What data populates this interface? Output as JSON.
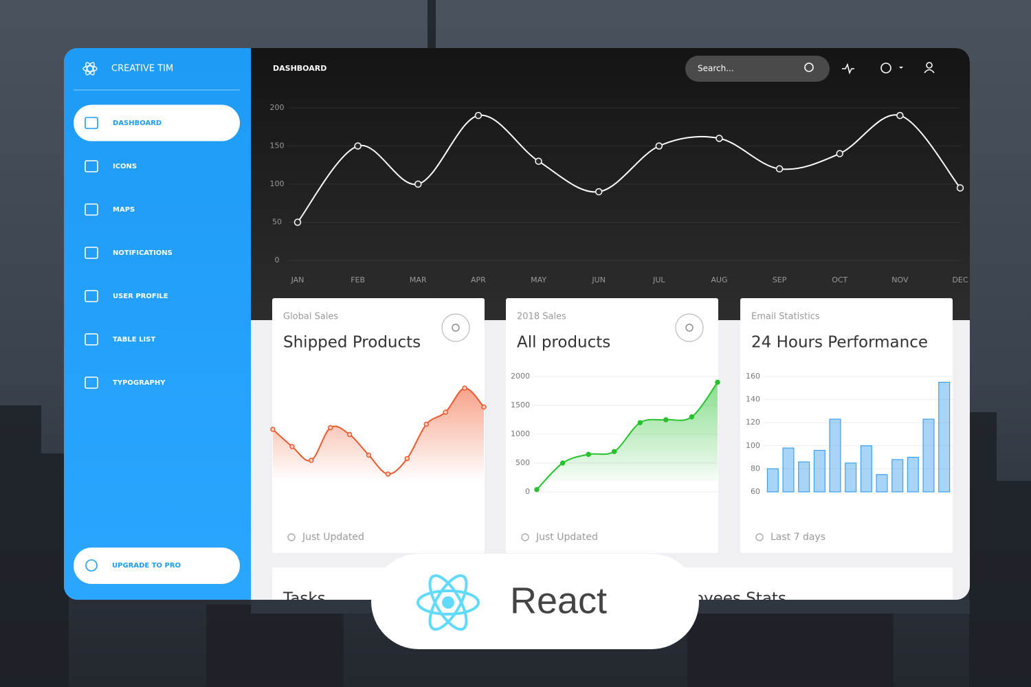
{
  "sidebar": {
    "brand": "CREATIVE TIM",
    "nav": [
      "DASHBOARD",
      "ICONS",
      "MAPS",
      "NOTIFICATIONS",
      "USER PROFILE",
      "TABLE LIST",
      "TYPOGRAPHY"
    ],
    "upgrade": "UPGRADE TO PRO"
  },
  "navbar": {
    "title": "DASHBOARD",
    "search_placeholder": "Search..."
  },
  "main_chart": {
    "type": "line",
    "categories": [
      "JAN",
      "FEB",
      "MAR",
      "APR",
      "MAY",
      "JUN",
      "JUL",
      "AUG",
      "SEP",
      "OCT",
      "NOV",
      "DEC"
    ],
    "values": [
      50,
      150,
      100,
      190,
      130,
      90,
      150,
      160,
      120,
      140,
      190,
      95
    ],
    "color": "#ffffff",
    "ylim": [
      0,
      200
    ],
    "yticks": [
      0,
      50,
      100,
      150,
      200
    ],
    "grid": true
  },
  "cards": [
    {
      "subtitle": "Global Sales",
      "title": "Shipped Products",
      "footer": "Just Updated",
      "chart": {
        "type": "line",
        "categories": [
          null,
          null,
          null,
          null,
          null,
          null,
          null,
          null,
          null,
          null,
          null,
          null
        ],
        "values": [
          86,
          76,
          68,
          87,
          83,
          71,
          60,
          69,
          89,
          96,
          110,
          99
        ],
        "color": "#f0572a",
        "ylim": [
          20,
          120
        ]
      }
    },
    {
      "subtitle": "2018 Sales",
      "title": "All products",
      "footer": "Just Updated",
      "chart": {
        "type": "line",
        "categories": [
          null,
          null,
          null,
          null,
          null,
          null,
          null,
          null
        ],
        "values": [
          40,
          500,
          650,
          700,
          1200,
          1250,
          1300,
          1900
        ],
        "color": "#27c22e",
        "ylim": [
          0,
          2000
        ],
        "yticks": [
          0,
          500,
          1000,
          1500,
          2000
        ],
        "grid": true
      }
    },
    {
      "subtitle": "Email Statistics",
      "title": "24 Hours Performance",
      "footer": "Last 7 days",
      "chart": {
        "type": "bar",
        "categories": [
          null,
          null,
          null,
          null,
          null,
          null,
          null,
          null,
          null,
          null,
          null,
          null
        ],
        "values": [
          80,
          98,
          86,
          96,
          123,
          85,
          100,
          75,
          88,
          90,
          123,
          155
        ],
        "color": "#3ea0f0",
        "ylim": [
          60,
          160
        ],
        "yticks": [
          60,
          80,
          100,
          120,
          140,
          160
        ],
        "grid": true
      }
    }
  ],
  "bottom_cards": [
    "Tasks",
    "Employees Stats"
  ],
  "badge": {
    "label": "React"
  }
}
